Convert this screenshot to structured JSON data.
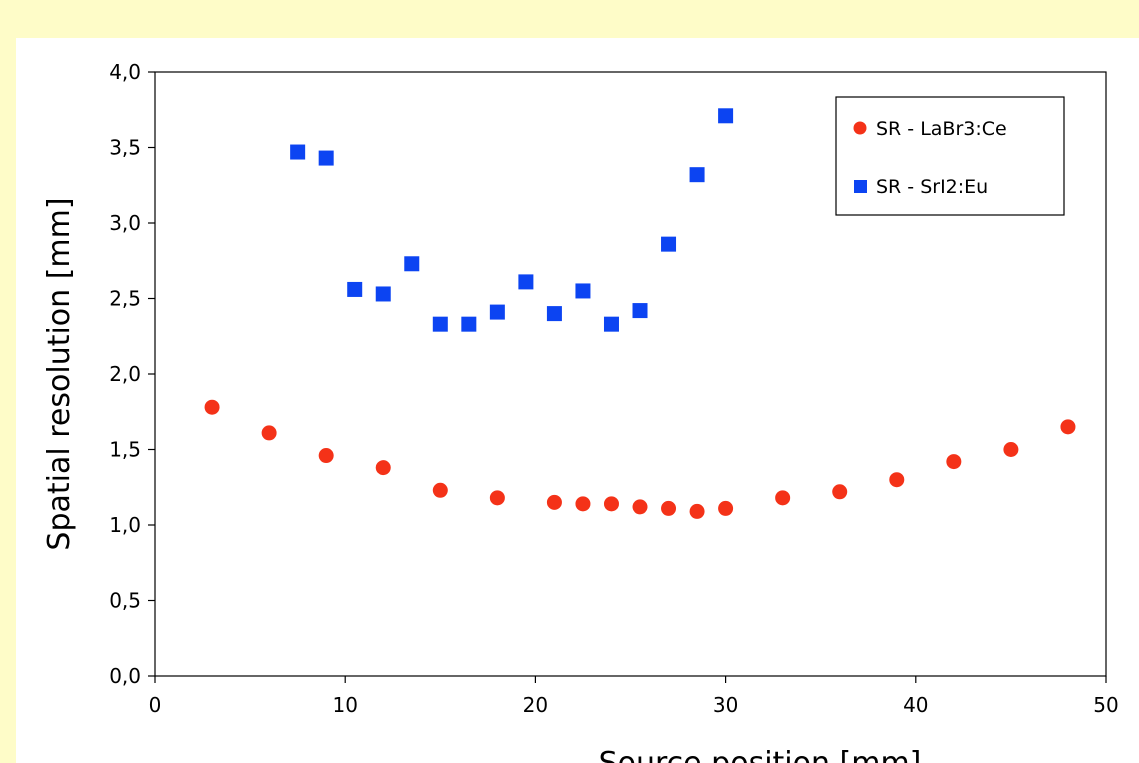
{
  "chart_data": {
    "type": "scatter",
    "xlabel": "Source position [mm]",
    "ylabel": "Spatial resolution [mm]",
    "xlim": [
      0,
      50
    ],
    "ylim": [
      0,
      4
    ],
    "x_ticks": [
      "0",
      "10",
      "20",
      "30",
      "40",
      "50"
    ],
    "y_ticks": [
      "0,0",
      "0,5",
      "1,0",
      "1,5",
      "2,0",
      "2,5",
      "3,0",
      "3,5",
      "4,0"
    ],
    "grid": false,
    "legend_position": "top-right",
    "series": [
      {
        "name": "SR - LaBr3:Ce",
        "marker": "circle",
        "color": "#f43218",
        "x": [
          3,
          6,
          9,
          12,
          15,
          18,
          21,
          22.5,
          24,
          25.5,
          27,
          28.5,
          30,
          33,
          36,
          39,
          42,
          45,
          48
        ],
        "y": [
          1.78,
          1.61,
          1.46,
          1.38,
          1.23,
          1.18,
          1.15,
          1.14,
          1.14,
          1.12,
          1.11,
          1.09,
          1.11,
          1.18,
          1.22,
          1.3,
          1.42,
          1.5,
          1.65
        ]
      },
      {
        "name": "SR - SrI2:Eu",
        "marker": "square",
        "color": "#0c44f2",
        "x": [
          7.5,
          9,
          10.5,
          12,
          13.5,
          15,
          16.5,
          18,
          19.5,
          21,
          22.5,
          24,
          25.5,
          27,
          28.5,
          30
        ],
        "y": [
          3.47,
          3.43,
          2.56,
          2.53,
          2.73,
          2.33,
          2.33,
          2.41,
          2.61,
          2.4,
          2.55,
          2.33,
          2.42,
          2.86,
          3.32,
          3.71
        ]
      }
    ]
  }
}
